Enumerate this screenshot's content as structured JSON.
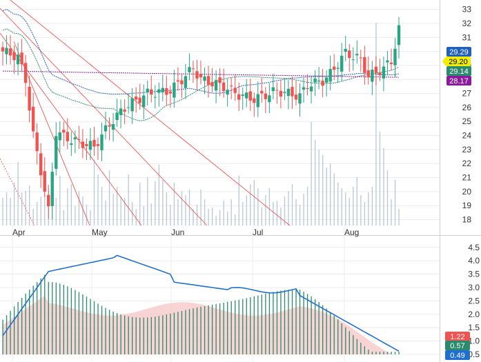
{
  "chart_data": [
    {
      "type": "candlestick",
      "title": "",
      "x_labels": [
        "Apr",
        "May",
        "Jun",
        "Jul",
        "Aug"
      ],
      "y_ticks": [
        18,
        19,
        20,
        21,
        22,
        23,
        24,
        25,
        26,
        27,
        28,
        29,
        30,
        31,
        32,
        33
      ],
      "y_tick_labels": [
        "18",
        "19",
        "20",
        "21",
        "22",
        "23",
        "24",
        "25",
        "26",
        "27",
        "28",
        "29",
        "30",
        "31",
        "32",
        "33"
      ],
      "ylim": [
        17.3,
        33.3
      ],
      "grid": true,
      "series": [
        {
          "kind": "price_close",
          "value": 29.2,
          "badge_text": "29.20",
          "color": "#f2ee00",
          "text_color": "#000000"
        },
        {
          "kind": "ma_short",
          "value": 29.29,
          "badge_text": "29.29",
          "color": "#1f5fbf",
          "text_color": "#ffffff"
        },
        {
          "kind": "ma_mid",
          "value": 29.14,
          "badge_text": "29.14",
          "color": "#2a8a6e",
          "text_color": "#ffffff"
        },
        {
          "kind": "ma_long",
          "value": 28.17,
          "badge_text": "28.17",
          "color": "#8b1a9c",
          "text_color": "#ffffff"
        }
      ],
      "colors": {
        "up": "#2aa584",
        "down": "#f05350",
        "volume": "#b8c7d6",
        "trendline": "#ef5350"
      }
    },
    {
      "type": "line",
      "title": "",
      "y_ticks": [
        0.5,
        1.0,
        1.5,
        2.0,
        2.5,
        3.0,
        3.5,
        4.0,
        4.5
      ],
      "y_tick_labels": [
        "0.5",
        "1.0",
        "1.5",
        "2.0",
        "2.5",
        "3.0",
        "3.5",
        "4.0",
        "4.5"
      ],
      "ylim": [
        0.3,
        4.8
      ],
      "grid": true,
      "series": [
        {
          "kind": "line",
          "value": 0.49,
          "badge_text": "0.49",
          "color": "#1f6fd0",
          "text_color": "#ffffff"
        },
        {
          "kind": "histogram",
          "value": 0.57,
          "badge_text": "0.57",
          "color": "#2a8a6e",
          "text_color": "#ffffff"
        },
        {
          "kind": "area",
          "value": 1.22,
          "badge_text": "1.22",
          "color": "#f05350",
          "text_color": "#ffffff"
        }
      ]
    }
  ]
}
